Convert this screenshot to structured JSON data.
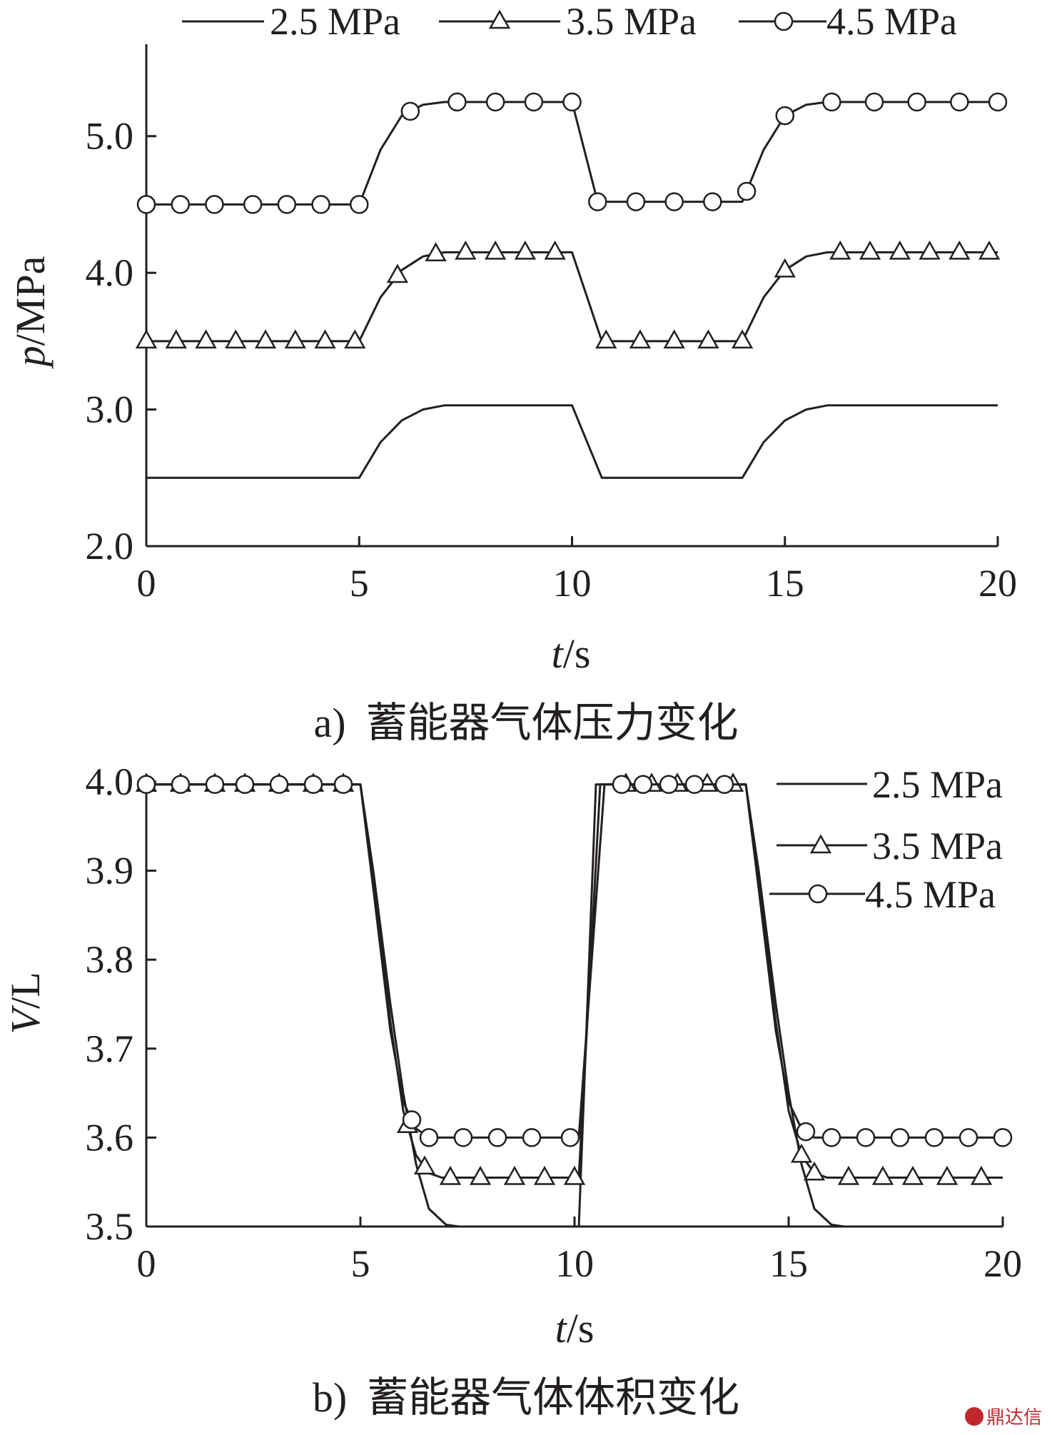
{
  "chart_data": [
    {
      "type": "line",
      "caption_label": "a)",
      "caption_text": "蓄能器气体压力变化",
      "xlabel_var": "t",
      "xlabel_unit": "/s",
      "ylabel_var": "p",
      "ylabel_unit": "/MPa",
      "xlim": [
        0,
        20
      ],
      "ylim": [
        2.0,
        5.5
      ],
      "xticks": [
        "0",
        "5",
        "10",
        "15",
        "20"
      ],
      "yticks": [
        "2.0",
        "3.0",
        "4.0",
        "5.0"
      ],
      "ytick_values": [
        2.0,
        3.0,
        4.0,
        5.0
      ],
      "legend_position": "top",
      "series": [
        {
          "name": "2.5 MPa",
          "marker": "none",
          "x": [
            0,
            5.0,
            5.5,
            6.0,
            6.5,
            7.0,
            10.0,
            10.7,
            14.0,
            14.5,
            15.0,
            15.5,
            16.0,
            20.0
          ],
          "y": [
            2.5,
            2.5,
            2.76,
            2.92,
            3.0,
            3.03,
            3.03,
            2.5,
            2.5,
            2.76,
            2.92,
            3.0,
            3.03,
            3.03
          ],
          "marker_x": []
        },
        {
          "name": "3.5 MPa",
          "marker": "triangle",
          "x": [
            0,
            5.0,
            5.5,
            6.0,
            6.5,
            7.0,
            10.0,
            10.7,
            14.0,
            14.5,
            15.0,
            15.5,
            16.0,
            20.0
          ],
          "y": [
            3.5,
            3.5,
            3.82,
            4.02,
            4.12,
            4.15,
            4.15,
            3.5,
            3.5,
            3.82,
            4.02,
            4.12,
            4.15,
            4.15
          ],
          "marker_x": [
            0,
            0.7,
            1.4,
            2.1,
            2.8,
            3.5,
            4.2,
            4.9,
            5.9,
            6.8,
            7.5,
            8.2,
            8.9,
            9.6,
            10.8,
            11.6,
            12.4,
            13.2,
            14.0,
            15.0,
            16.3,
            17.0,
            17.7,
            18.4,
            19.1,
            19.8
          ]
        },
        {
          "name": "4.5 MPa",
          "marker": "circle",
          "x": [
            0,
            5.0,
            5.5,
            6.0,
            6.5,
            7.0,
            10.0,
            10.6,
            14.0,
            14.5,
            15.0,
            15.5,
            16.0,
            20.0
          ],
          "y": [
            4.5,
            4.5,
            4.9,
            5.15,
            5.23,
            5.25,
            5.25,
            4.52,
            4.52,
            4.9,
            5.15,
            5.23,
            5.25,
            5.25
          ],
          "marker_x": [
            0,
            0.8,
            1.6,
            2.5,
            3.3,
            4.1,
            5.0,
            6.2,
            7.3,
            8.2,
            9.1,
            10.0,
            10.6,
            11.5,
            12.4,
            13.3,
            14.1,
            15.0,
            16.1,
            17.1,
            18.1,
            19.1,
            20.0
          ]
        }
      ]
    },
    {
      "type": "line",
      "caption_label": "b)",
      "caption_text": "蓄能器气体体积变化",
      "xlabel_var": "t",
      "xlabel_unit": "/s",
      "ylabel_var": "V",
      "ylabel_unit": "/L",
      "xlim": [
        0,
        20
      ],
      "ylim": [
        3.5,
        4.0
      ],
      "xticks": [
        "0",
        "5",
        "10",
        "15",
        "20"
      ],
      "yticks": [
        "3.5",
        "3.6",
        "3.7",
        "3.8",
        "3.9",
        "4.0"
      ],
      "ytick_values": [
        3.5,
        3.6,
        3.7,
        3.8,
        3.9,
        4.0
      ],
      "legend_position": "top-right",
      "series": [
        {
          "name": "2.5 MPa",
          "marker": "none",
          "x": [
            0,
            5.0,
            5.3,
            5.7,
            6.0,
            6.3,
            6.6,
            7.0,
            7.3,
            10.0,
            10.1,
            10.5,
            14.0,
            14.3,
            14.7,
            15.0,
            15.3,
            15.6,
            16.0,
            16.3,
            20.0
          ],
          "y": [
            3.997,
            3.997,
            3.9,
            3.75,
            3.65,
            3.57,
            3.52,
            3.502,
            3.5,
            3.5,
            3.5,
            3.997,
            3.997,
            3.9,
            3.75,
            3.65,
            3.57,
            3.52,
            3.502,
            3.5,
            3.5
          ],
          "marker_x": []
        },
        {
          "name": "3.5 MPa",
          "marker": "triangle",
          "x": [
            0,
            5.0,
            5.3,
            5.7,
            6.0,
            6.3,
            6.6,
            6.9,
            7.2,
            10.0,
            10.1,
            10.6,
            14.0,
            14.3,
            14.7,
            15.0,
            15.3,
            15.6,
            15.9,
            16.2,
            20.0
          ],
          "y": [
            3.997,
            3.997,
            3.89,
            3.73,
            3.63,
            3.58,
            3.56,
            3.555,
            3.555,
            3.555,
            3.555,
            3.997,
            3.997,
            3.89,
            3.73,
            3.63,
            3.58,
            3.56,
            3.555,
            3.555,
            3.555
          ],
          "marker_x": [
            0,
            0.8,
            1.6,
            2.3,
            3.1,
            3.9,
            4.6,
            6.1,
            6.5,
            7.1,
            7.8,
            8.6,
            9.3,
            10.0,
            11.2,
            11.8,
            12.4,
            13.1,
            13.7,
            15.3,
            15.6,
            16.4,
            17.2,
            17.9,
            18.7,
            19.5
          ]
        },
        {
          "name": "4.5 MPa",
          "marker": "circle",
          "x": [
            0,
            5.0,
            5.3,
            5.7,
            6.0,
            6.3,
            6.6,
            6.9,
            10.0,
            10.1,
            10.7,
            14.0,
            14.3,
            14.7,
            15.0,
            15.3,
            15.6,
            15.9,
            20.0
          ],
          "y": [
            3.997,
            3.997,
            3.88,
            3.72,
            3.64,
            3.61,
            3.6,
            3.6,
            3.6,
            3.6,
            3.997,
            3.997,
            3.88,
            3.72,
            3.64,
            3.61,
            3.6,
            3.6,
            3.6
          ],
          "marker_x": [
            0,
            0.8,
            1.6,
            2.3,
            3.1,
            3.9,
            4.6,
            6.2,
            6.6,
            7.4,
            8.2,
            9.0,
            9.9,
            11.1,
            11.6,
            12.2,
            12.8,
            13.5,
            15.4,
            16.0,
            16.8,
            17.6,
            18.4,
            19.2,
            20.0
          ]
        }
      ]
    }
  ],
  "watermark": "鼎达信"
}
